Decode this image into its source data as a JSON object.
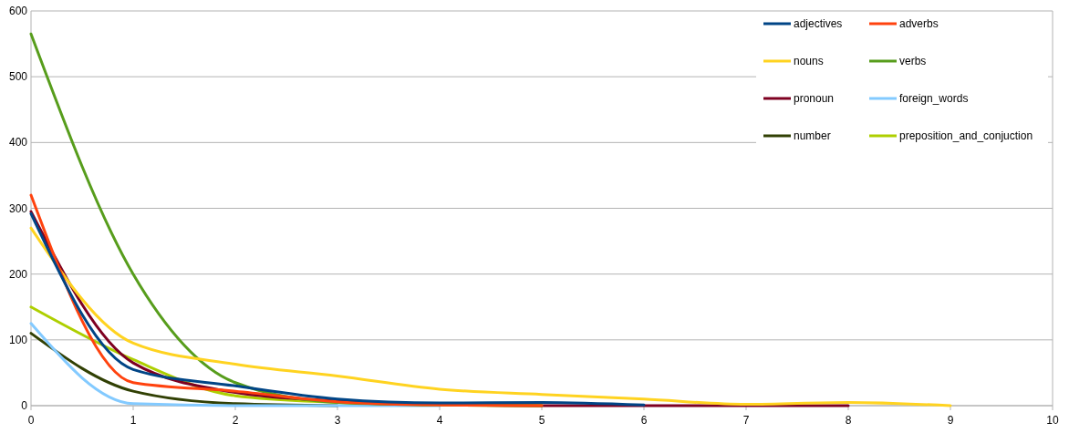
{
  "chart_data": {
    "type": "line",
    "x": [
      0,
      1,
      2,
      3,
      4,
      5,
      6,
      7,
      8,
      9
    ],
    "xlim": [
      0,
      10
    ],
    "xticks": [
      0,
      1,
      2,
      3,
      4,
      5,
      6,
      7,
      8,
      9,
      10
    ],
    "ylim": [
      0,
      600
    ],
    "yticks": [
      0,
      100,
      200,
      300,
      400,
      500,
      600
    ],
    "grid": "y",
    "legend": "top right",
    "marker": "none",
    "series": [
      {
        "name": "adjectives",
        "color": "#004586",
        "x": [
          0,
          1,
          2,
          3,
          4,
          5,
          6
        ],
        "values": [
          292,
          55,
          30,
          10,
          4,
          5,
          1
        ]
      },
      {
        "name": "adverbs",
        "color": "#ff420e",
        "x": [
          0,
          1,
          2,
          3,
          4,
          5
        ],
        "values": [
          320,
          35,
          22,
          6,
          1,
          0
        ]
      },
      {
        "name": "nouns",
        "color": "#ffd320",
        "values": [
          270,
          95,
          63,
          45,
          25,
          17,
          10,
          2,
          5,
          0
        ]
      },
      {
        "name": "verbs",
        "color": "#579d1c",
        "x": [
          0,
          1,
          2,
          3,
          4,
          5
        ],
        "values": [
          565,
          200,
          35,
          5,
          1,
          0
        ]
      },
      {
        "name": "pronoun",
        "color": "#7e0021",
        "x": [
          0,
          1,
          2,
          3,
          4,
          5,
          6,
          7,
          8
        ],
        "values": [
          295,
          65,
          20,
          7,
          2,
          0,
          0,
          0,
          0
        ]
      },
      {
        "name": "foreign_words",
        "color": "#83caff",
        "x": [
          0,
          1,
          2,
          3,
          4
        ],
        "values": [
          125,
          3,
          0,
          0,
          0
        ]
      },
      {
        "name": "number",
        "color": "#314004",
        "x": [
          0,
          1,
          2,
          3
        ],
        "values": [
          110,
          22,
          3,
          0
        ]
      },
      {
        "name": "preposition_and_conjuction",
        "color": "#aecf00",
        "x": [
          0,
          1,
          2,
          3,
          4,
          5
        ],
        "values": [
          150,
          70,
          15,
          5,
          1,
          0
        ]
      }
    ]
  }
}
